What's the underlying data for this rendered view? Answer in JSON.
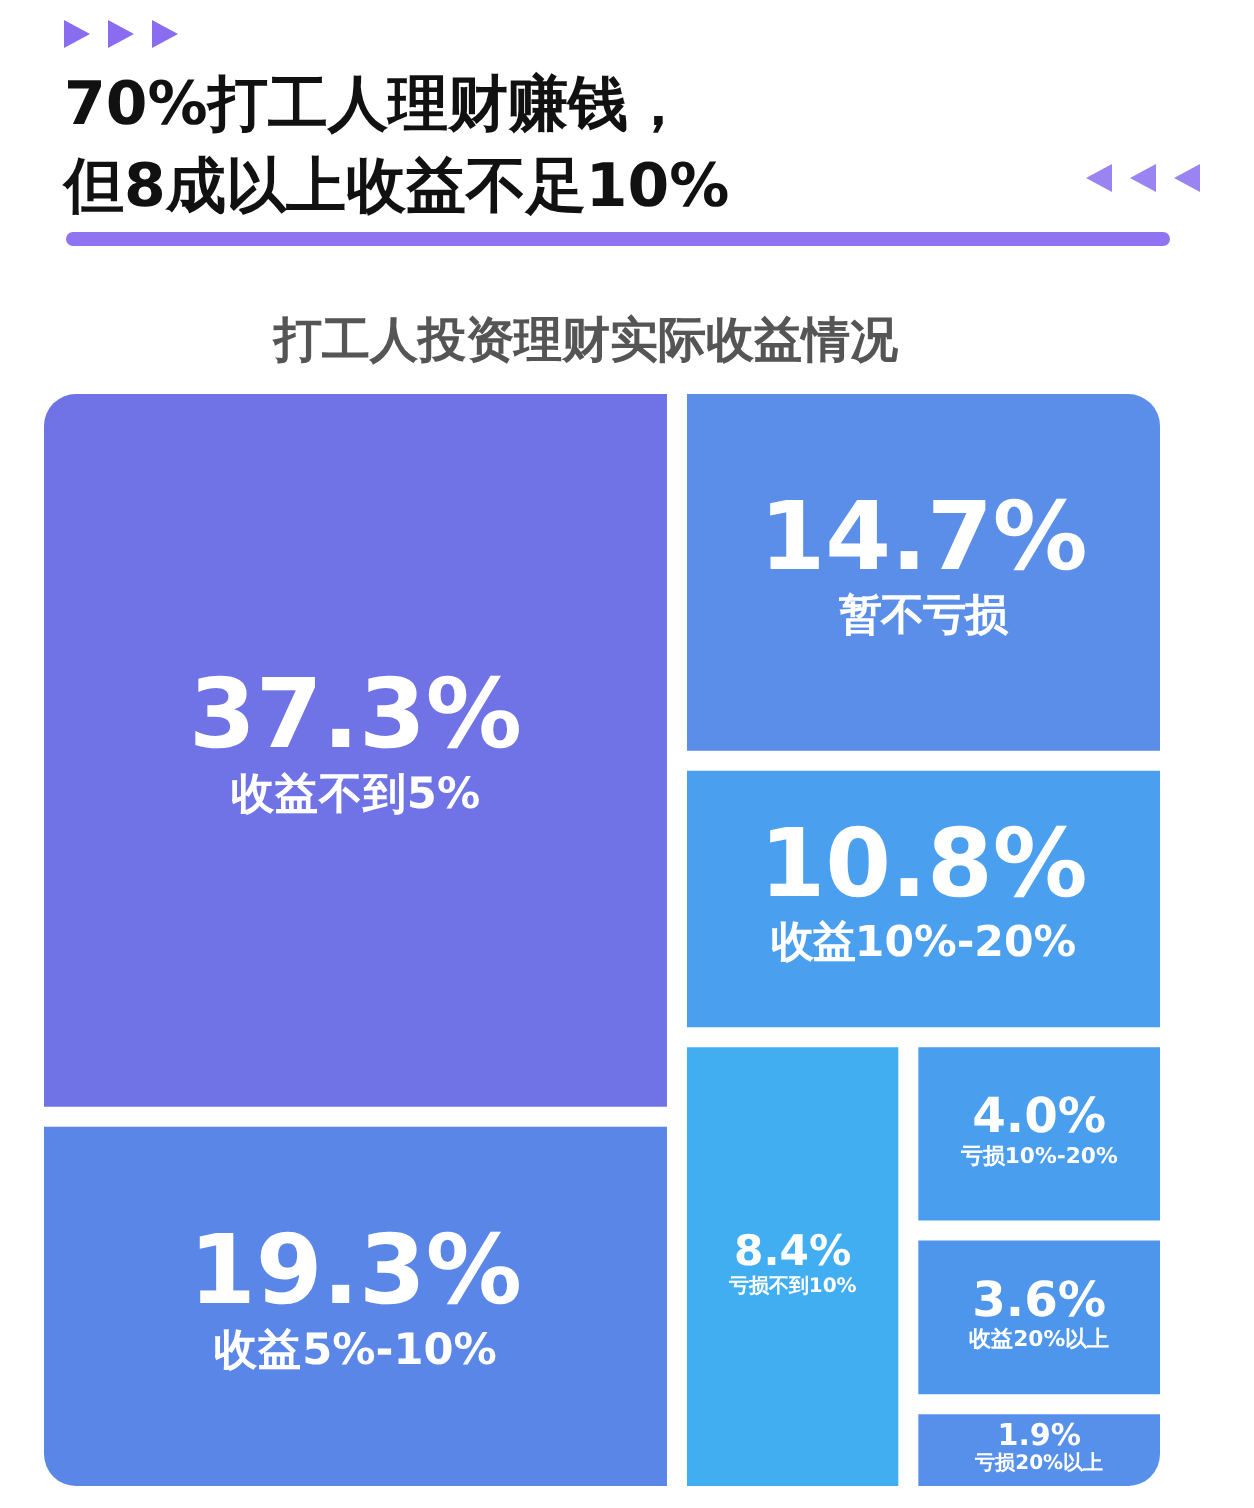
{
  "chart_data": {
    "type": "other",
    "title": "70%打工人理财赚钱，但8成以上收益不足10%",
    "subtitle": "打工人投资理财实际收益情况",
    "categories": [
      "收益不到5%",
      "收益5%-10%",
      "暂不亏损",
      "收益10%-20%",
      "亏损不到10%",
      "亏损10%-20%",
      "收益20%以上",
      "亏损20%以上"
    ],
    "values": [
      37.3,
      19.3,
      14.7,
      10.8,
      8.4,
      4.0,
      3.6,
      1.9
    ],
    "value_labels": [
      "37.3%",
      "19.3%",
      "14.7%",
      "10.8%",
      "8.4%",
      "4.0%",
      "3.6%",
      "1.9%"
    ],
    "colors": [
      "#6f73e5",
      "#5a86e8",
      "#5a8ee9",
      "#4aa0ee",
      "#42aef2",
      "#4a9eee",
      "#4d96ec",
      "#5690ea"
    ]
  }
}
